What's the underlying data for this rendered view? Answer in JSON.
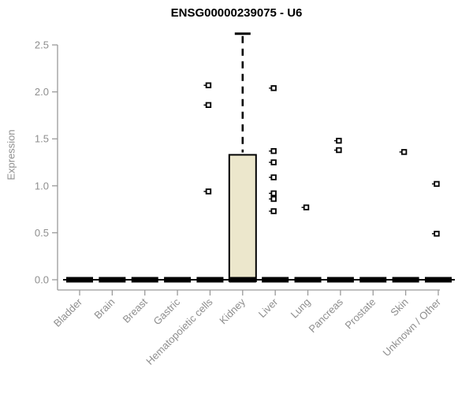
{
  "colors": {
    "background": "#ffffff",
    "title_text": "#000000",
    "axis": "#9a9a9a",
    "tick_text": "#8e8e8e",
    "box_fill": "#ece7cc",
    "box_stroke": "#000000",
    "whisker": "#000000",
    "outlier_fill": "#ffffff",
    "outlier_stroke": "#000000"
  },
  "chart_data": {
    "type": "boxplot",
    "title": "ENSG00000239075 - U6",
    "xlabel": "",
    "ylabel": "Expression",
    "ylim": [
      0,
      2.5
    ],
    "yticks": [
      0,
      0.5,
      1,
      1.5,
      2,
      2.5
    ],
    "grid": false,
    "legend": false,
    "categories": [
      "Bladder",
      "Brain",
      "Breast",
      "Gastric",
      "Hematopoietic cells",
      "Kidney",
      "Liver",
      "Lung",
      "Pancreas",
      "Prostate",
      "Skin",
      "Unknown / Other"
    ],
    "boxes": [
      {
        "category": "Bladder",
        "low": 0,
        "q1": 0,
        "median": 0,
        "q3": 0,
        "high": 0,
        "outliers": []
      },
      {
        "category": "Brain",
        "low": 0,
        "q1": 0,
        "median": 0,
        "q3": 0,
        "high": 0,
        "outliers": []
      },
      {
        "category": "Breast",
        "low": 0,
        "q1": 0,
        "median": 0,
        "q3": 0,
        "high": 0,
        "outliers": []
      },
      {
        "category": "Gastric",
        "low": 0,
        "q1": 0,
        "median": 0,
        "q3": 0,
        "high": 0,
        "outliers": []
      },
      {
        "category": "Hematopoietic cells",
        "low": 0,
        "q1": 0,
        "median": 0,
        "q3": 0,
        "high": 0,
        "outliers": [
          2.07,
          1.86,
          0.94
        ]
      },
      {
        "category": "Kidney",
        "low": 0,
        "q1": 0,
        "median": 0,
        "q3": 1.33,
        "high": 2.62,
        "outliers": []
      },
      {
        "category": "Liver",
        "low": 0,
        "q1": 0,
        "median": 0,
        "q3": 0,
        "high": 0,
        "outliers": [
          2.04,
          1.37,
          1.25,
          1.09,
          0.92,
          0.86,
          0.73
        ]
      },
      {
        "category": "Lung",
        "low": 0,
        "q1": 0,
        "median": 0,
        "q3": 0,
        "high": 0,
        "outliers": [
          0.77
        ]
      },
      {
        "category": "Pancreas",
        "low": 0,
        "q1": 0,
        "median": 0,
        "q3": 0,
        "high": 0,
        "outliers": [
          1.48,
          1.38
        ]
      },
      {
        "category": "Prostate",
        "low": 0,
        "q1": 0,
        "median": 0,
        "q3": 0,
        "high": 0,
        "outliers": []
      },
      {
        "category": "Skin",
        "low": 0,
        "q1": 0,
        "median": 0,
        "q3": 0,
        "high": 0,
        "outliers": [
          1.36
        ]
      },
      {
        "category": "Unknown / Other",
        "low": 0,
        "q1": 0,
        "median": 0,
        "q3": 0,
        "high": 0,
        "outliers": [
          1.02,
          0.49
        ]
      }
    ]
  }
}
